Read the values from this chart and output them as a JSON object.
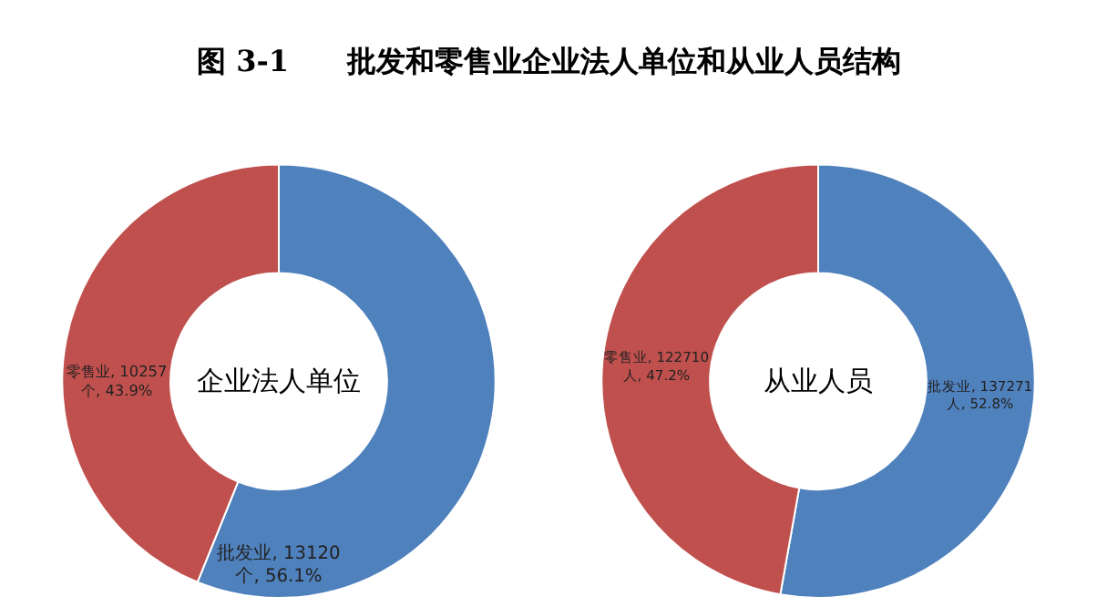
{
  "chart_data": [
    {
      "type": "donut",
      "title": "图 3-1　　批发和零售业企业法人单位和从业人员结构",
      "categories": [
        "批发业",
        "零售业"
      ],
      "values": [
        13120,
        10257
      ],
      "colors": [
        "#4f81bd",
        "#c0504d"
      ],
      "value_labels": [
        "13120 个, 56.1%",
        "10257 个, 43.9%"
      ],
      "annotations": [
        "企业法人单位"
      ],
      "legend": false
    },
    {
      "type": "donut",
      "categories": [
        "批发业",
        "零售业"
      ],
      "values": [
        137271,
        122710
      ],
      "colors": [
        "#4f81bd",
        "#c0504d"
      ],
      "value_labels": [
        "137271 人, 52.8%",
        "122710 人, 47.2%"
      ],
      "annotations": [
        "从业人员"
      ],
      "legend": false
    }
  ]
}
